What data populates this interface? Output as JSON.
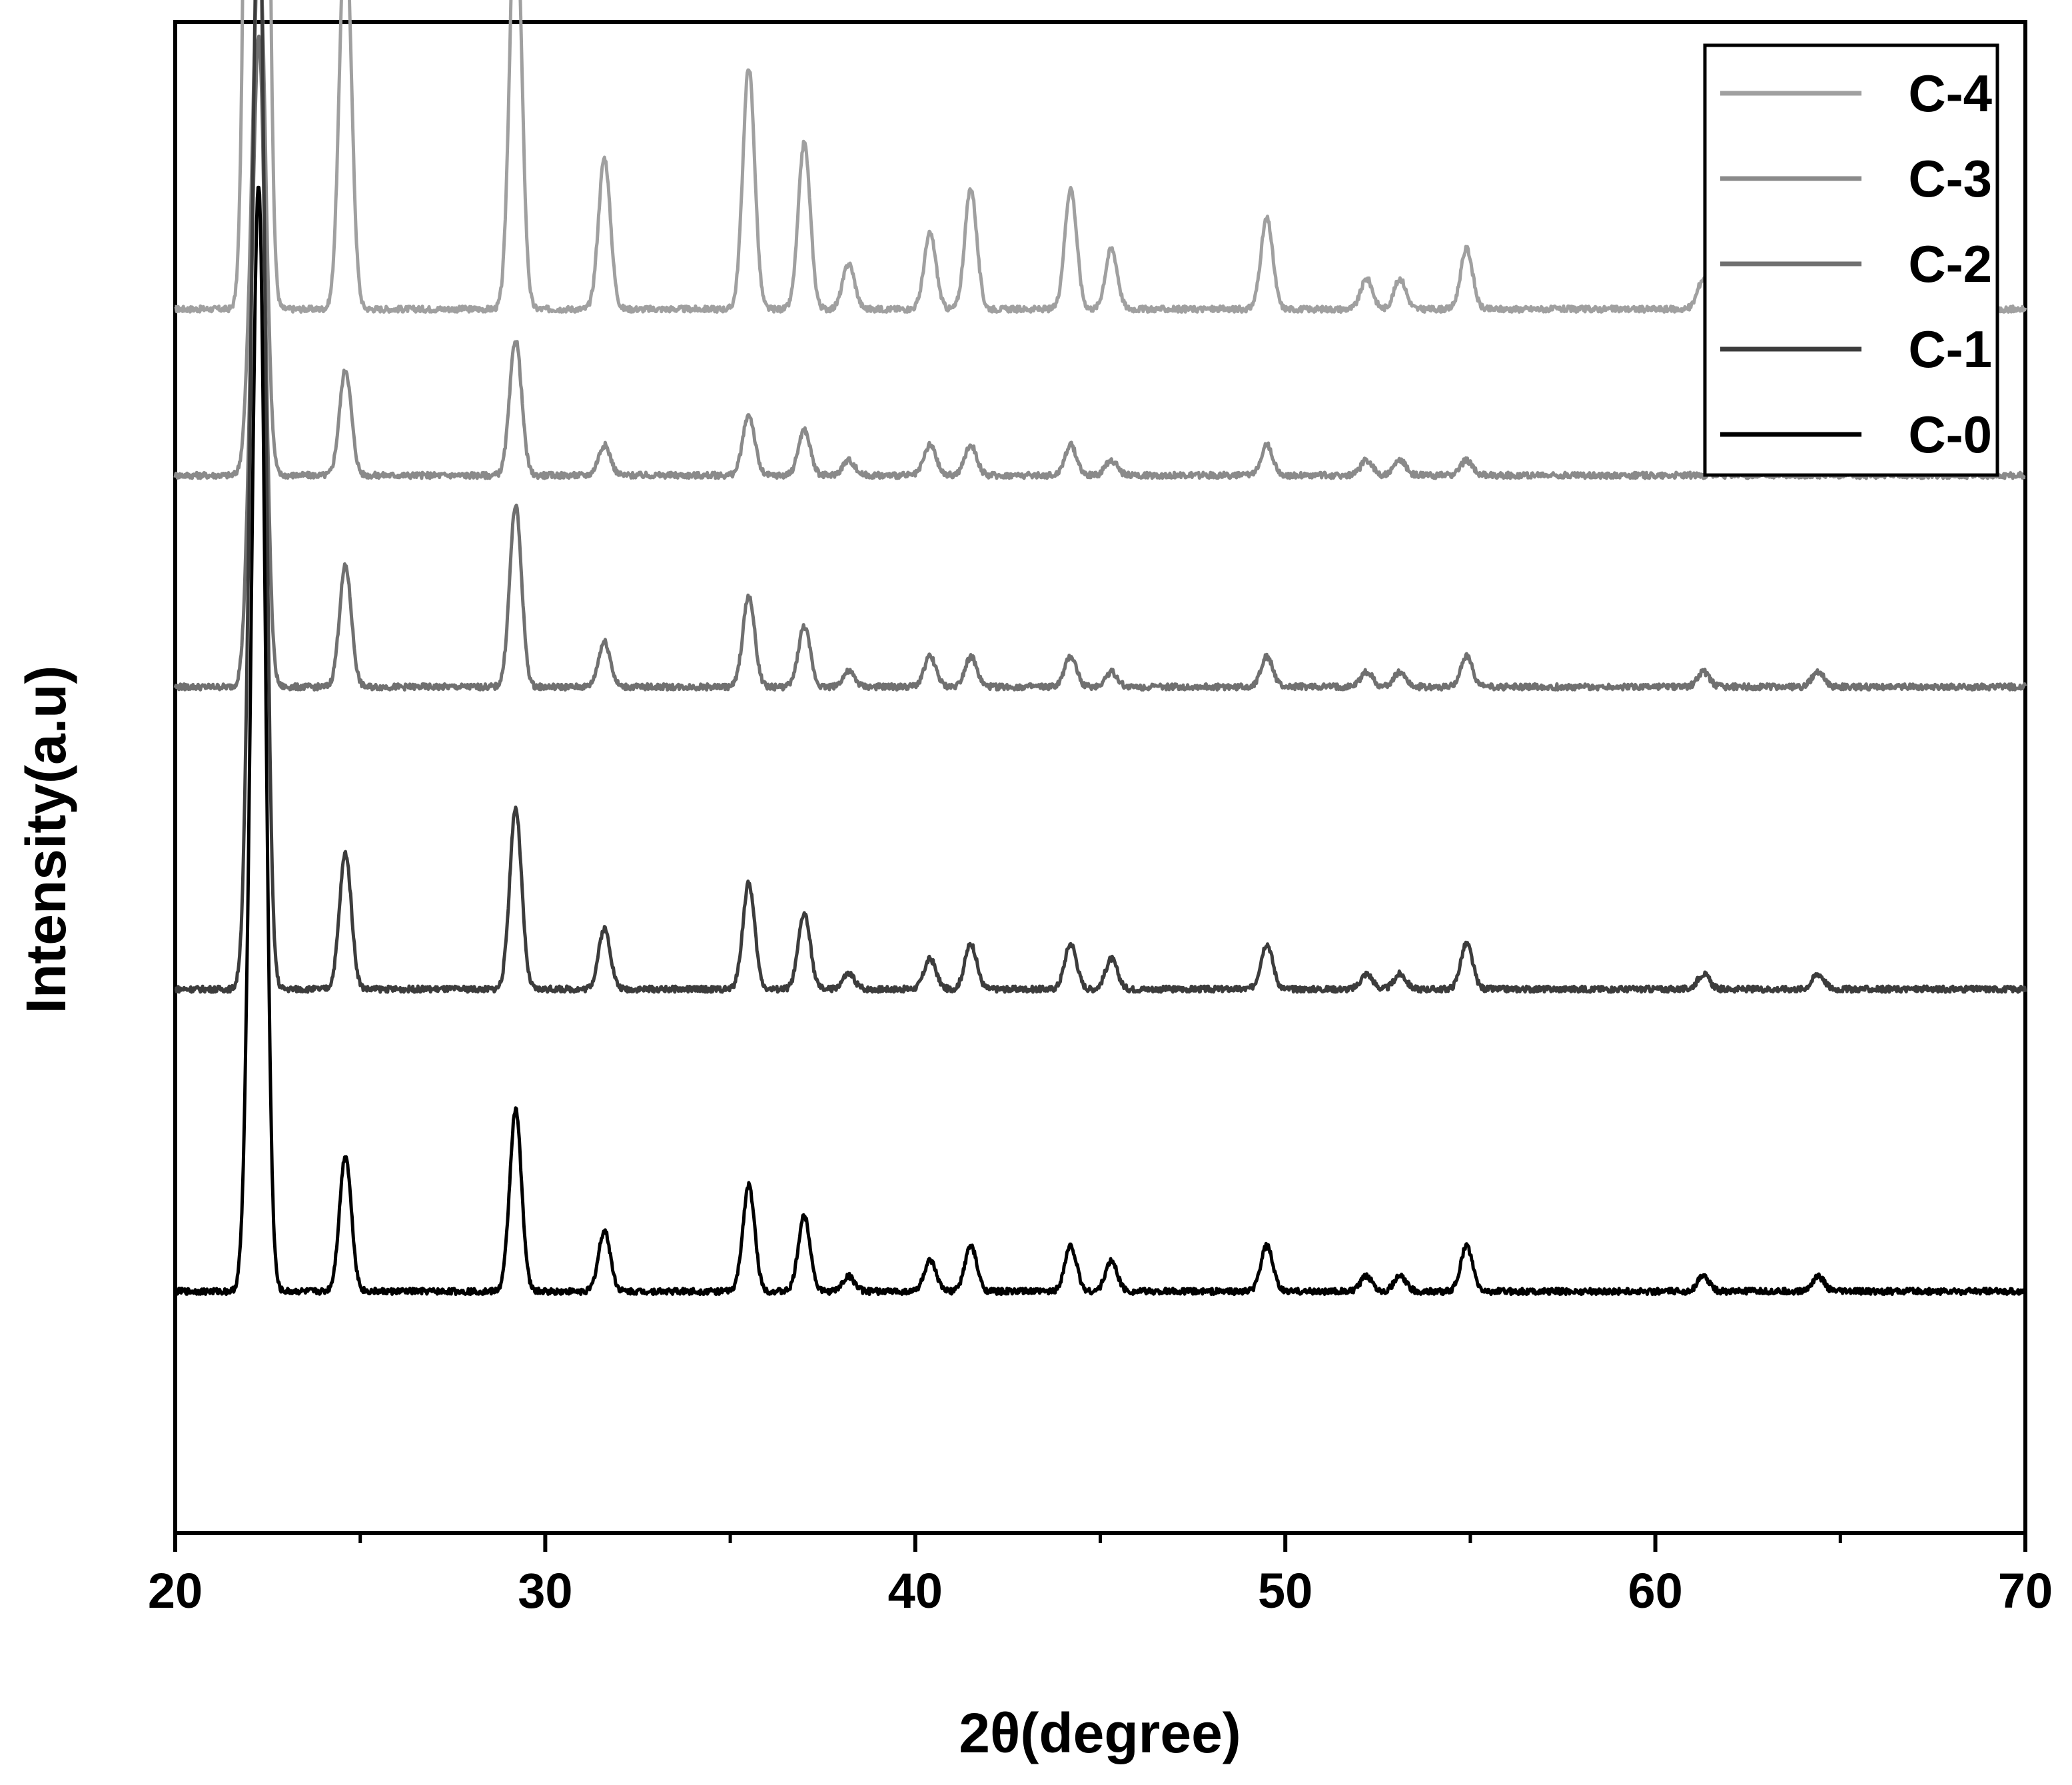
{
  "chart_data": {
    "type": "line",
    "title": "",
    "xlabel": "2θ(degree)",
    "ylabel": "Intensity(a.u)",
    "xlim": [
      20,
      70
    ],
    "xticks": [
      20,
      30,
      40,
      50,
      60,
      70
    ],
    "ytick_labels": false,
    "grid": false,
    "legend_position": "top-right",
    "stacked_offset": true,
    "peaks_2theta": [
      22.1,
      22.3,
      24.6,
      29.2,
      31.6,
      35.5,
      37.0,
      38.2,
      40.4,
      41.5,
      44.2,
      45.3,
      49.5,
      52.2,
      53.1,
      54.9,
      61.3,
      64.4
    ],
    "series": [
      {
        "name": "C-4",
        "color": "#a0a0a0",
        "baseline": 0.81,
        "intensities": [
          0.9,
          1.0,
          0.26,
          0.28,
          0.1,
          0.16,
          0.11,
          0.03,
          0.05,
          0.08,
          0.08,
          0.04,
          0.06,
          0.02,
          0.02,
          0.04,
          0.02,
          0.02
        ]
      },
      {
        "name": "C-3",
        "color": "#8a8a8a",
        "baseline": 0.7,
        "intensities": [
          0.1,
          0.3,
          0.07,
          0.09,
          0.02,
          0.04,
          0.03,
          0.01,
          0.02,
          0.02,
          0.02,
          0.01,
          0.02,
          0.01,
          0.01,
          0.01,
          0.0,
          0.0
        ]
      },
      {
        "name": "C-2",
        "color": "#707070",
        "baseline": 0.56,
        "intensities": [
          0.15,
          0.35,
          0.08,
          0.12,
          0.03,
          0.06,
          0.04,
          0.01,
          0.02,
          0.02,
          0.02,
          0.01,
          0.02,
          0.01,
          0.01,
          0.02,
          0.01,
          0.01
        ]
      },
      {
        "name": "C-1",
        "color": "#3c3c3c",
        "baseline": 0.36,
        "intensities": [
          0.28,
          0.58,
          0.09,
          0.12,
          0.04,
          0.07,
          0.05,
          0.01,
          0.02,
          0.03,
          0.03,
          0.02,
          0.03,
          0.01,
          0.01,
          0.03,
          0.01,
          0.01
        ]
      },
      {
        "name": "C-0",
        "color": "#000000",
        "baseline": 0.16,
        "intensities": [
          0.28,
          0.58,
          0.09,
          0.12,
          0.04,
          0.07,
          0.05,
          0.01,
          0.02,
          0.03,
          0.03,
          0.02,
          0.03,
          0.01,
          0.01,
          0.03,
          0.01,
          0.01
        ]
      }
    ]
  }
}
